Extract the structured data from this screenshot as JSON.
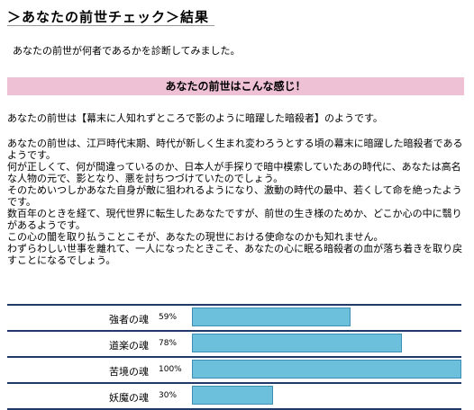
{
  "header": {
    "title": "＞あなたの前世チェック＞結果",
    "subtitle": "あなたの前世が何者であるかを診断してみました。"
  },
  "section": {
    "heading": "あなたの前世はこんな感じ！"
  },
  "result": {
    "summary": "あなたの前世は【幕末に人知れずところで影のように暗躍した暗殺者】のようです。",
    "paragraphs": [
      "あなたの前世は、江戸時代末期、時代が新しく生まれ変わろうとする頃の幕末に暗躍した暗殺者であるようです。",
      "何が正しくて、何が間違っているのか、日本人が手探りで暗中模索していたあの時代に、あなたは高名な人物の元で、影となり、悪を討ちつづけていたのでしょう。",
      "そのためいつしかあなた自身が敵に狙われるようになり、激動の時代の最中、若くして命を絶ったようです。",
      "数百年のときを経て、現代世界に転生したあなたですが、前世の生き様のためか、どこか心の中に翳りがあるようです。",
      "この心の闇を取り払うことこそが、あなたの現世における使命なのかも知れません。",
      "わずらわしい世事を離れて、一人になったときこそ、あなたの心に眠る暗殺者の血が落ち着きを取り戻すことになるでしょう。"
    ]
  },
  "stats": [
    {
      "label": "強者の魂",
      "percent_label": "59%",
      "value": 59
    },
    {
      "label": "道楽の魂",
      "percent_label": "78%",
      "value": 78
    },
    {
      "label": "苦境の魂",
      "percent_label": "100%",
      "value": 100
    },
    {
      "label": "妖魔の魂",
      "percent_label": "30%",
      "value": 30
    }
  ],
  "colors": {
    "section_bar": "#efc1d5",
    "stat_bar": "#6cc0dc",
    "stat_rule": "#1f3a68"
  }
}
